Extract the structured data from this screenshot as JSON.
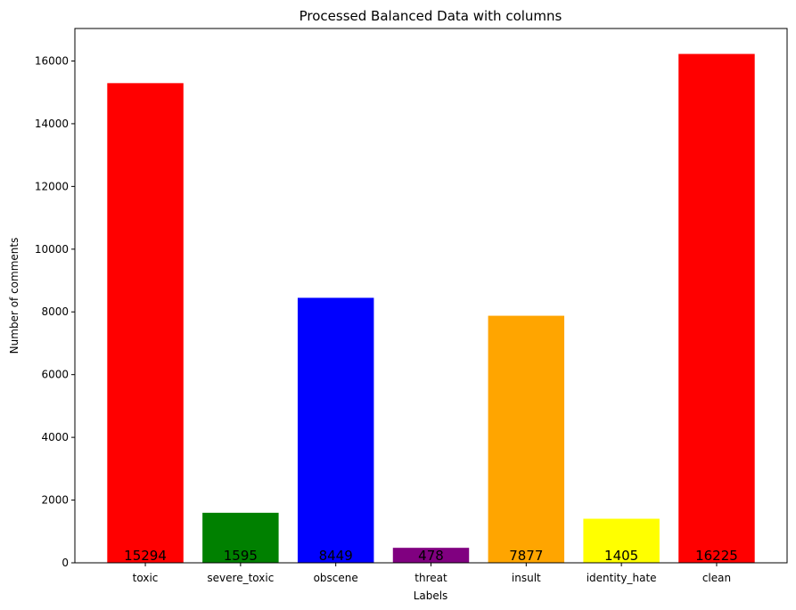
{
  "chart_data": {
    "type": "bar",
    "title": "Processed Balanced Data with columns",
    "xlabel": "Labels",
    "ylabel": "Number of comments",
    "categories": [
      "toxic",
      "severe_toxic",
      "obscene",
      "threat",
      "insult",
      "identity_hate",
      "clean"
    ],
    "values": [
      15294,
      1595,
      8449,
      478,
      7877,
      1405,
      16225
    ],
    "data_labels": [
      "15294",
      "1595",
      "8449",
      "478",
      "7877",
      "1405",
      "16225"
    ],
    "colors": [
      "#ff0000",
      "#008000",
      "#0000ff",
      "#800080",
      "#ffa500",
      "#ffff00",
      "#ff0000"
    ],
    "yticks": [
      0,
      2000,
      4000,
      6000,
      8000,
      10000,
      12000,
      14000,
      16000
    ],
    "ytick_labels": [
      "0",
      "2000",
      "4000",
      "6000",
      "8000",
      "10000",
      "12000",
      "14000",
      "16000"
    ],
    "ylim": [
      0,
      17036
    ],
    "grid": false,
    "legend": "none"
  }
}
